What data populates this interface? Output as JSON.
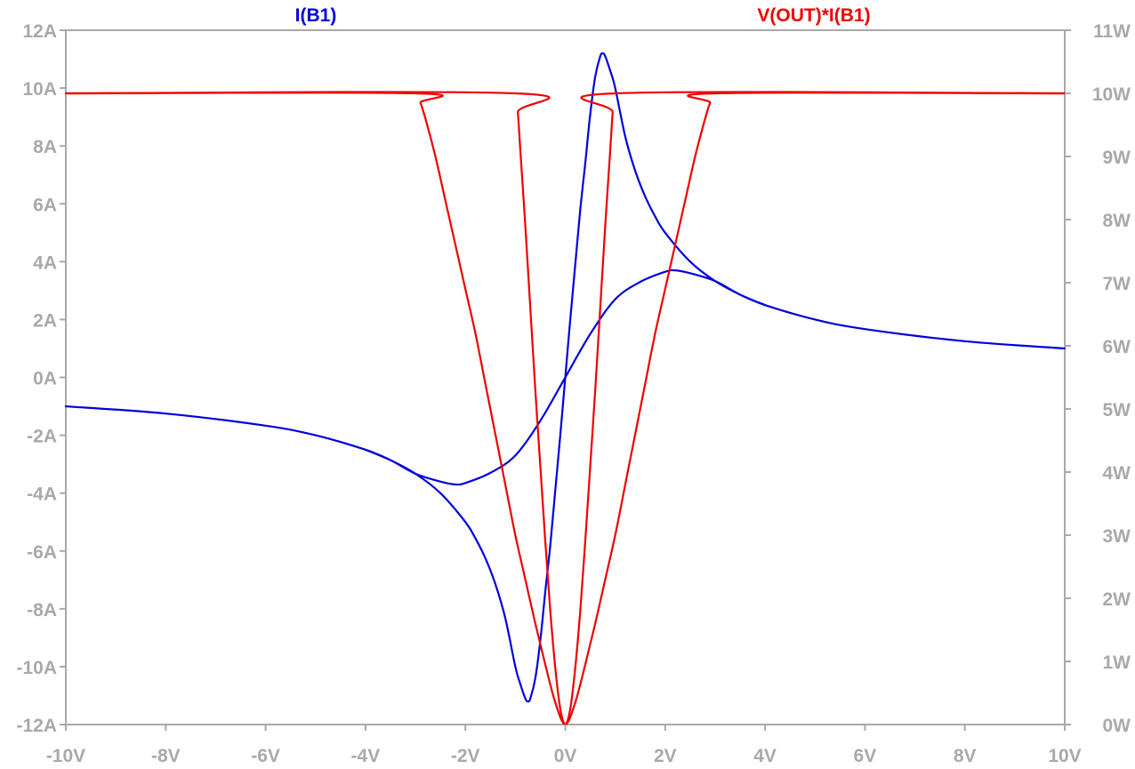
{
  "chart_data": {
    "type": "line",
    "x_axis": {
      "unit": "V",
      "range": [
        -10,
        10
      ],
      "ticks": [
        -10,
        -8,
        -6,
        -4,
        -2,
        0,
        2,
        4,
        6,
        8,
        10
      ],
      "tick_labels": [
        "-10V",
        "-8V",
        "-6V",
        "-4V",
        "-2V",
        "0V",
        "2V",
        "4V",
        "6V",
        "8V",
        "10V"
      ]
    },
    "y_axis_left": {
      "unit": "A",
      "range": [
        -12,
        12
      ],
      "ticks": [
        -12,
        -10,
        -8,
        -6,
        -4,
        -2,
        0,
        2,
        4,
        6,
        8,
        10,
        12
      ],
      "tick_labels": [
        "-12A",
        "-10A",
        "-8A",
        "-6A",
        "-4A",
        "-2A",
        "0A",
        "2A",
        "4A",
        "6A",
        "8A",
        "10A",
        "12A"
      ]
    },
    "y_axis_right": {
      "unit": "W",
      "range": [
        0,
        11
      ],
      "ticks": [
        0,
        1,
        2,
        3,
        4,
        5,
        6,
        7,
        8,
        9,
        10,
        11
      ],
      "tick_labels": [
        "0W",
        "1W",
        "2W",
        "3W",
        "4W",
        "5W",
        "6W",
        "7W",
        "8W",
        "9W",
        "10W",
        "11W"
      ]
    },
    "grid": false,
    "legend_placement": "top",
    "series": [
      {
        "name": "I(B1)",
        "axis": "left",
        "color": "#0000dd",
        "segments": [
          {
            "x": [
              -10,
              -8,
              -6,
              -5,
              -4,
              -3.5,
              -3,
              -2.5,
              -2,
              -1.8,
              -1.6,
              -1.4,
              -1.2,
              -1,
              -0.9,
              -0.8,
              -0.75,
              -0.7,
              -0.6,
              -0.5,
              -0.4,
              -0.3,
              -0.2,
              -0.1,
              0
            ],
            "y": [
              -1,
              -1.25,
              -1.67,
              -2,
              -2.5,
              -2.86,
              -3.33,
              -4,
              -5,
              -5.56,
              -6.25,
              -7.14,
              -8.33,
              -10,
              -10.6,
              -11.1,
              -11.2,
              -11.1,
              -10.4,
              -9.1,
              -7.4,
              -5.8,
              -3.9,
              -2,
              0
            ]
          },
          {
            "x": [
              0,
              0.1,
              0.2,
              0.3,
              0.4,
              0.5,
              0.6,
              0.7,
              0.75,
              0.8,
              0.9,
              1,
              1.2,
              1.4,
              1.6,
              1.8,
              2,
              2.5,
              3,
              3.5,
              4,
              5,
              6,
              8,
              10
            ],
            "y": [
              0,
              2,
              3.9,
              5.8,
              7.4,
              9.1,
              10.4,
              11.1,
              11.2,
              11.1,
              10.6,
              10,
              8.33,
              7.14,
              6.25,
              5.56,
              5,
              4,
              3.33,
              2.86,
              2.5,
              2,
              1.67,
              1.25,
              1
            ]
          },
          {
            "x": [
              -4,
              -3.5,
              -3,
              -2.5,
              -2.2,
              -2,
              -1.5,
              -1,
              -0.5,
              0,
              0.5,
              1,
              1.5,
              2,
              2.2,
              2.5,
              3,
              3.5,
              4
            ],
            "y": [
              -2.5,
              -2.86,
              -3.33,
              -3.6,
              -3.7,
              -3.65,
              -3.3,
              -2.7,
              -1.5,
              0,
              1.5,
              2.7,
              3.3,
              3.65,
              3.7,
              3.6,
              3.33,
              2.86,
              2.5
            ]
          }
        ]
      },
      {
        "name": "V(OUT)*I(B1)",
        "axis": "right",
        "color": "#ee0000",
        "segments": [
          {
            "x": [
              -10,
              -1,
              -0.95,
              -0.9,
              -0.8,
              -0.7,
              -0.6,
              -0.5,
              -0.4,
              -0.3,
              -0.2,
              -0.1,
              0,
              0.1,
              0.2,
              0.3,
              0.4,
              0.5,
              0.6,
              0.7,
              0.8,
              0.9,
              0.95,
              1,
              10
            ],
            "y": [
              10,
              10,
              9.7,
              9.1,
              7.9,
              6.6,
              5.3,
              4.1,
              2.9,
              1.8,
              0.9,
              0.25,
              0,
              0.25,
              0.9,
              1.8,
              2.9,
              4.1,
              5.3,
              6.6,
              7.9,
              9.1,
              9.7,
              10,
              10
            ]
          },
          {
            "x": [
              -10,
              -3,
              -2.9,
              -2.8,
              -2.6,
              -2.4,
              -2.2,
              -2,
              -1.8,
              -1.6,
              -1.4,
              -1.2,
              -1,
              -0.8,
              -0.6,
              -0.4,
              -0.2,
              0,
              0.2,
              0.4,
              0.6,
              0.8,
              1,
              1.2,
              1.4,
              1.6,
              1.8,
              2,
              2.2,
              2.4,
              2.6,
              2.8,
              2.9,
              3,
              10
            ],
            "y": [
              10,
              10,
              9.85,
              9.6,
              9.0,
              8.3,
              7.6,
              6.9,
              6.2,
              5.4,
              4.6,
              3.8,
              3.0,
              2.3,
              1.6,
              0.95,
              0.35,
              0,
              0.35,
              0.95,
              1.6,
              2.3,
              3.0,
              3.8,
              4.6,
              5.4,
              6.2,
              6.9,
              7.6,
              8.3,
              9.0,
              9.6,
              9.85,
              10,
              10
            ]
          }
        ]
      }
    ]
  }
}
